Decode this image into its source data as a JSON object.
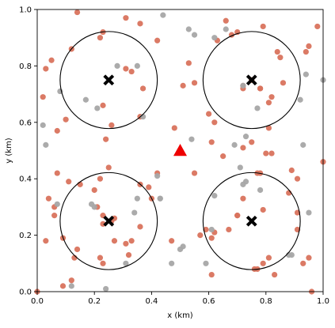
{
  "chart_data": {
    "type": "scatter",
    "title": "",
    "xlabel": "x (km)",
    "ylabel": "y (km)",
    "xlim": [
      0,
      1.0
    ],
    "ylim": [
      0,
      1.0
    ],
    "xticks": [
      "0.0",
      "0.2",
      "0.4",
      "0.6",
      "0.8",
      "1.0"
    ],
    "yticks": [
      "0.0",
      "0.2",
      "0.4",
      "0.6",
      "0.8",
      "1.0"
    ],
    "grid": false,
    "legend": "none",
    "colors": {
      "red_points": "#d9735d",
      "gray_points": "#a6a6a6",
      "centers": "#000000",
      "triangle": "#ee0000",
      "circles": "#000000"
    },
    "circles": [
      {
        "cx": 0.25,
        "cy": 0.75,
        "r": 0.17
      },
      {
        "cx": 0.75,
        "cy": 0.75,
        "r": 0.17
      },
      {
        "cx": 0.25,
        "cy": 0.25,
        "r": 0.17
      },
      {
        "cx": 0.75,
        "cy": 0.25,
        "r": 0.17
      }
    ],
    "centers": [
      {
        "x": 0.25,
        "y": 0.75
      },
      {
        "x": 0.75,
        "y": 0.75
      },
      {
        "x": 0.25,
        "y": 0.25
      },
      {
        "x": 0.75,
        "y": 0.25
      }
    ],
    "triangle": {
      "x": 0.5,
      "y": 0.5
    },
    "series": [
      {
        "color_key": "red_points",
        "x": [
          0.14,
          0.31,
          0.36,
          0.23,
          0.12,
          0.22,
          0.05,
          0.03,
          0.02,
          0.23,
          0.31,
          0.37,
          0.33,
          0.22,
          0.25,
          0.24,
          0.26,
          0.1,
          0.07,
          0.36,
          0.48,
          0.42,
          0.53,
          0.55,
          0.51,
          0.6,
          0.62,
          0.66,
          0.63,
          0.68,
          0.7,
          0.72,
          0.78,
          0.82,
          0.75,
          0.72,
          0.78,
          0.81,
          0.86,
          0.79,
          0.85,
          0.84,
          0.94,
          0.95,
          0.98,
          0.91,
          0.82,
          0.77,
          0.72,
          0.61,
          0.7,
          0.65,
          0.75,
          0.8,
          0.79,
          0.07,
          0.04,
          0.11,
          0.15,
          0.2,
          0.23,
          0.21,
          0.27,
          0.31,
          0.36,
          0.39,
          0.42,
          0.36,
          0.33,
          0.27,
          0.14,
          0.09,
          0.06,
          0.03,
          0.13,
          0.22,
          0.23,
          0.23,
          0.26,
          0.32,
          0.4,
          0.59,
          0.57,
          0.62,
          0.67,
          0.7,
          0.72,
          0.76,
          0.77,
          0.79,
          0.81,
          0.83,
          0.88,
          0.89,
          0.91,
          0.93,
          0.95,
          0.96,
          0.0,
          0.06,
          0.12,
          0.09,
          0.55,
          0.61,
          0.47,
          0.61,
          0.78,
          0.81,
          0.91,
          1.0
        ],
        "y": [
          0.99,
          0.97,
          0.95,
          0.92,
          0.86,
          0.9,
          0.82,
          0.79,
          0.69,
          0.66,
          0.79,
          0.72,
          0.78,
          0.4,
          0.44,
          0.54,
          0.59,
          0.61,
          0.57,
          0.62,
          0.58,
          0.89,
          0.81,
          0.74,
          0.73,
          0.63,
          0.6,
          0.96,
          0.89,
          0.91,
          0.92,
          0.73,
          0.72,
          0.69,
          0.75,
          0.72,
          0.72,
          0.67,
          0.74,
          0.94,
          0.83,
          0.85,
          0.85,
          0.87,
          0.94,
          0.4,
          0.49,
          0.42,
          0.51,
          0.53,
          0.27,
          0.48,
          0.53,
          0.49,
          0.29,
          0.42,
          0.33,
          0.39,
          0.38,
          0.36,
          0.24,
          0.3,
          0.18,
          0.17,
          0.23,
          0.37,
          0.42,
          0.38,
          0.18,
          0.26,
          0.15,
          0.19,
          0.27,
          0.18,
          0.12,
          0.12,
          0.1,
          0.27,
          0.25,
          0.13,
          0.33,
          0.22,
          0.2,
          0.21,
          0.22,
          0.27,
          0.33,
          0.08,
          0.08,
          0.1,
          0.12,
          0.06,
          0.35,
          0.43,
          0.22,
          0.1,
          0.12,
          0.0,
          0.0,
          0.3,
          0.04,
          0.02,
          0.42,
          0.06,
          0.18,
          0.19,
          0.42,
          0.58,
          0.28,
          0.46
        ]
      },
      {
        "color_key": "gray_points",
        "x": [
          0.02,
          0.03,
          0.08,
          0.17,
          0.21,
          0.28,
          0.35,
          0.37,
          0.44,
          0.53,
          0.55,
          0.62,
          0.66,
          0.72,
          0.77,
          0.73,
          0.92,
          0.94,
          1.0,
          0.43,
          0.54,
          0.69,
          0.71,
          0.62,
          0.73,
          0.07,
          0.19,
          0.2,
          0.34,
          0.35,
          0.42,
          0.43,
          0.51,
          0.61,
          0.72,
          0.78,
          0.89,
          0.93,
          0.95,
          0.12,
          0.24,
          0.31,
          0.47,
          0.5,
          0.59,
          0.88
        ],
        "y": [
          0.59,
          0.52,
          0.71,
          0.68,
          0.65,
          0.8,
          0.8,
          0.62,
          0.98,
          0.93,
          0.91,
          0.9,
          0.93,
          0.73,
          0.65,
          0.55,
          0.68,
          0.77,
          0.75,
          0.33,
          0.54,
          0.52,
          0.44,
          0.34,
          0.39,
          0.31,
          0.31,
          0.3,
          0.28,
          0.33,
          0.41,
          0.33,
          0.16,
          0.22,
          0.38,
          0.36,
          0.13,
          0.52,
          0.28,
          0.02,
          0.01,
          0.1,
          0.1,
          0.15,
          0.1,
          0.13
        ]
      }
    ]
  }
}
